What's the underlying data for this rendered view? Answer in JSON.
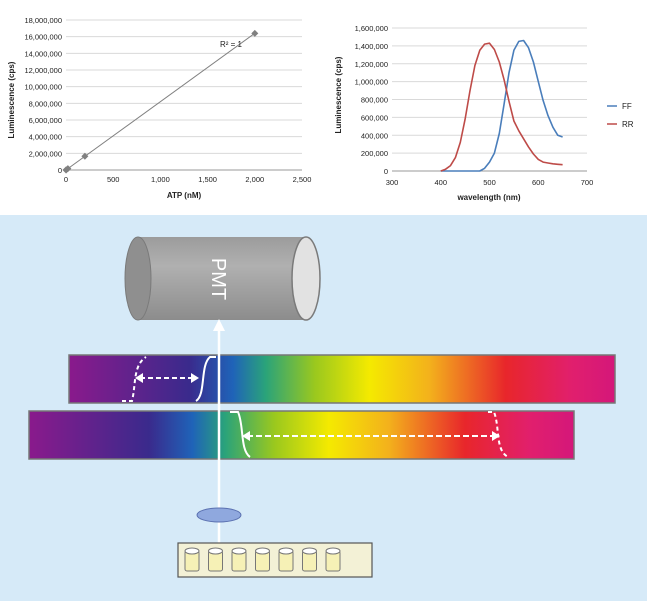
{
  "chart_data": [
    {
      "type": "scatter",
      "xlabel": "ATP (nM)",
      "ylabel": "Luminescence (cps)",
      "xlim": [
        0,
        2500
      ],
      "ylim": [
        0,
        18000000
      ],
      "xticks": [
        "0",
        "500",
        "1,000",
        "1,500",
        "2,000",
        "2,500"
      ],
      "yticks": [
        "0",
        "2,000,000",
        "4,000,000",
        "6,000,000",
        "8,000,000",
        "10,000,000",
        "12,000,000",
        "14,000,000",
        "16,000,000",
        "18,000,000"
      ],
      "annotation": "R² = 1",
      "grid": true,
      "x": [
        0,
        2,
        20,
        200,
        2000
      ],
      "y": [
        0,
        16500,
        165000,
        1650000,
        16400000
      ],
      "trendline": true,
      "colors": {
        "points": "#808080",
        "line": "#808080"
      }
    },
    {
      "type": "line",
      "xlabel": "wavelength (nm)",
      "ylabel": "Luminescence (cps)",
      "xlim": [
        300,
        700
      ],
      "ylim": [
        0,
        1600000
      ],
      "xticks": [
        "300",
        "400",
        "500",
        "600",
        "700"
      ],
      "yticks": [
        "0",
        "200,000",
        "400,000",
        "600,000",
        "800,000",
        "1,000,000",
        "1,200,000",
        "1,400,000",
        "1,600,000"
      ],
      "grid": true,
      "legend": "right",
      "x": [
        400,
        410,
        420,
        430,
        440,
        450,
        460,
        470,
        480,
        490,
        500,
        510,
        520,
        530,
        540,
        550,
        560,
        570,
        580,
        590,
        600,
        610,
        620,
        630,
        640,
        650
      ],
      "series": [
        {
          "name": "FF",
          "color": "#4a7ebb",
          "values": [
            0,
            0,
            0,
            0,
            0,
            0,
            0,
            0,
            0,
            30000,
            100000,
            200000,
            420000,
            750000,
            1100000,
            1350000,
            1450000,
            1460000,
            1380000,
            1220000,
            1000000,
            790000,
            620000,
            490000,
            400000,
            380000
          ]
        },
        {
          "name": "RR",
          "color": "#be4b48",
          "values": [
            0,
            20000,
            60000,
            150000,
            320000,
            580000,
            900000,
            1180000,
            1350000,
            1420000,
            1430000,
            1360000,
            1220000,
            1020000,
            780000,
            560000,
            450000,
            360000,
            270000,
            190000,
            130000,
            100000,
            90000,
            80000,
            75000,
            70000
          ]
        }
      ]
    }
  ],
  "diagram": {
    "pmt_label": "PMT",
    "colors": {
      "background": "#d6eaf8",
      "cylinder": "#a6a6a6",
      "arrow": "#ffffff",
      "lens": "#8fa8de",
      "plate": "#f2efc8"
    },
    "wells": 7
  }
}
